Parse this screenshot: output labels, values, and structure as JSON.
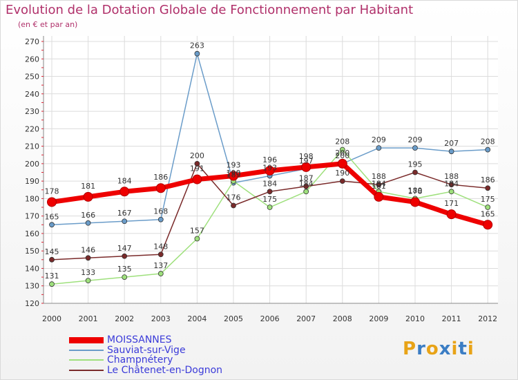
{
  "header": {
    "title": "Evolution de la Dotation Globale de Fonctionnement par Habitant",
    "subtitle": "(en € et par an)"
  },
  "logo": {
    "text": "Proxiti",
    "letters": [
      "P",
      "r",
      "o",
      "x",
      "i",
      "t",
      "i"
    ],
    "colors": [
      "#e8a317",
      "#3b7dc4",
      "#e8a317",
      "#3b7dc4",
      "#e8a317",
      "#3b7dc4",
      "#e8a317"
    ]
  },
  "chart_data": {
    "type": "line",
    "title": "Evolution de la Dotation Globale de Fonctionnement par Habitant",
    "subtitle": "(en € et par an)",
    "xlabel": "",
    "ylabel": "",
    "ylim": [
      120,
      270
    ],
    "yticks": [
      120,
      130,
      140,
      150,
      160,
      170,
      180,
      190,
      200,
      210,
      220,
      230,
      240,
      250,
      260,
      270
    ],
    "categories": [
      "2000",
      "2001",
      "2002",
      "2003",
      "2004",
      "2005",
      "2006",
      "2007",
      "2008",
      "2009",
      "2010",
      "2011",
      "2012"
    ],
    "grid": true,
    "legend_position": "bottom-left",
    "series": [
      {
        "name": "MOISSANNES",
        "color": "#ee0000",
        "values": [
          178,
          181,
          184,
          186,
          191,
          193,
          196,
          198,
          200,
          181,
          178,
          171,
          165
        ],
        "labels": [
          "178",
          "181",
          "184",
          "186",
          "191",
          "193",
          "196",
          "198",
          "200",
          "181",
          "178",
          "171",
          "165"
        ]
      },
      {
        "name": "Sauviat-sur-Vige",
        "color": "#6a9cc9",
        "values": [
          165,
          166,
          167,
          168,
          263,
          189,
          193,
          197,
          200,
          209,
          209,
          207,
          208
        ],
        "labels": [
          "165",
          "166",
          "167",
          "168",
          "263",
          "189",
          "193",
          "197",
          "200",
          "209",
          "209",
          "207",
          "208"
        ]
      },
      {
        "name": "Champnétery",
        "color": "#9ee07c",
        "values": [
          131,
          133,
          135,
          137,
          157,
          190,
          175,
          184,
          208,
          184,
          180,
          184,
          175
        ],
        "labels": [
          "131",
          "133",
          "135",
          "137",
          "157",
          "190",
          "175",
          "184",
          "208",
          "184",
          "180",
          "184",
          "175"
        ]
      },
      {
        "name": "Le Châtenet-en-Dognon",
        "color": "#7a2a2a",
        "values": [
          145,
          146,
          147,
          148,
          200,
          176,
          184,
          187,
          190,
          188,
          195,
          188,
          186
        ],
        "labels": [
          "145",
          "146",
          "147",
          "148",
          "200",
          "176",
          "184",
          "187",
          "190",
          "188",
          "195",
          "188",
          "186"
        ]
      }
    ]
  }
}
